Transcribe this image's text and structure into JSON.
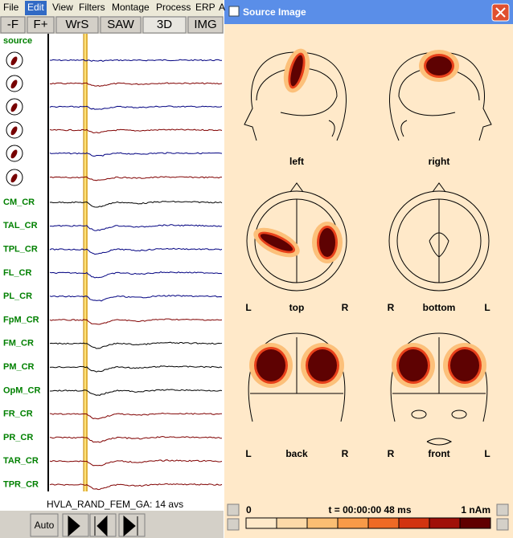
{
  "menu": [
    "File",
    "Edit",
    "View",
    "Filters",
    "Montage",
    "Process",
    "ERP",
    "A"
  ],
  "toolbar": [
    "-F",
    "F+",
    "WrS",
    "SAW",
    "3D",
    "IMG"
  ],
  "channels": {
    "source_label": "source",
    "labels": [
      "CM_CR",
      "TAL_CR",
      "TPL_CR",
      "FL_CR",
      "PL_CR",
      "FpM_CR",
      "FM_CR",
      "PM_CR",
      "OpM_CR",
      "FR_CR",
      "PR_CR",
      "TAR_CR",
      "TPR_CR"
    ]
  },
  "status": "HVLA_RAND_FEM_GA: 14 avs",
  "controls": {
    "auto": "Auto"
  },
  "window": {
    "title": "Source Image",
    "views": [
      {
        "name": "left"
      },
      {
        "name": "right"
      },
      {
        "name": "top",
        "left": "L",
        "right": "R"
      },
      {
        "name": "bottom",
        "left": "R",
        "right": "L"
      },
      {
        "name": "back",
        "left": "L",
        "right": "R"
      },
      {
        "name": "front",
        "left": "R",
        "right": "L"
      }
    ],
    "colorbar": {
      "min": "0",
      "time": "t = 00:00:00  48 ms",
      "max": "1 nAm"
    }
  }
}
